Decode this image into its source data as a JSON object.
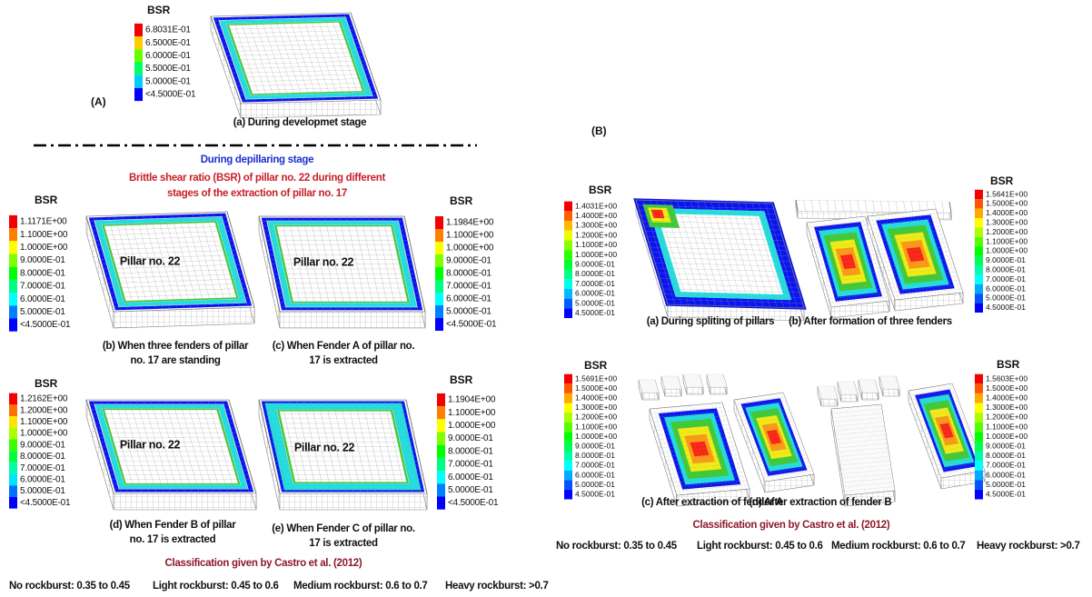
{
  "left": {
    "label": "(A)",
    "stage_heading": "During depillaring stage",
    "subtitle": [
      "Brittle shear ratio (BSR) of pillar no. 22 during different",
      "stages of the extraction of pillar no. 17"
    ],
    "panels": [
      {
        "legend": {
          "title": "BSR",
          "labels": [
            "6.8031E-01",
            "6.5000E-01",
            "6.0000E-01",
            "5.5000E-01",
            "5.0000E-01",
            "<4.5000E-01"
          ]
        },
        "caption": [
          "(a) During developmet stage"
        ]
      },
      {
        "legend": {
          "title": "BSR",
          "labels": [
            "1.1171E+00",
            "1.1000E+00",
            "1.0000E+00",
            "9.0000E-01",
            "8.0000E-01",
            "7.0000E-01",
            "6.0000E-01",
            "5.0000E-01",
            "<4.5000E-01"
          ]
        },
        "pillar_label": "Pillar no. 22",
        "caption": [
          "(b) When three fenders of pillar",
          "no. 17 are standing"
        ]
      },
      {
        "legend": {
          "title": "BSR",
          "labels": [
            "1.1984E+00",
            "1.1000E+00",
            "1.0000E+00",
            "9.0000E-01",
            "8.0000E-01",
            "7.0000E-01",
            "6.0000E-01",
            "5.0000E-01",
            "<4.5000E-01"
          ]
        },
        "pillar_label": "Pillar no. 22",
        "caption": [
          "(c) When Fender A of pillar no.",
          "17 is extracted"
        ]
      },
      {
        "legend": {
          "title": "BSR",
          "labels": [
            "1.2162E+00",
            "1.2000E+00",
            "1.1000E+00",
            "1.0000E+00",
            "9.0000E-01",
            "8.0000E-01",
            "7.0000E-01",
            "6.0000E-01",
            "5.0000E-01",
            "<4.5000E-01"
          ]
        },
        "pillar_label": "Pillar no. 22",
        "caption": [
          "(d) When Fender B of pillar",
          "no. 17 is extracted"
        ]
      },
      {
        "legend": {
          "title": "BSR",
          "labels": [
            "1.1904E+00",
            "1.1000E+00",
            "1.0000E+00",
            "9.0000E-01",
            "8.0000E-01",
            "7.0000E-01",
            "6.0000E-01",
            "5.0000E-01",
            "<4.5000E-01"
          ]
        },
        "pillar_label": "Pillar no. 22",
        "caption": [
          "(e) When Fender C of pillar no.",
          "17 is extracted"
        ]
      }
    ],
    "classification_title": "Classification given by Castro et al. (2012)",
    "classification": [
      "No rockburst: 0.35 to 0.45",
      "Light rockburst: 0.45 to 0.6",
      "Medium rockburst: 0.6 to 0.7",
      "Heavy rockburst: >0.7"
    ]
  },
  "right": {
    "label": "(B)",
    "panels": [
      {
        "legend": {
          "title": "BSR",
          "labels": [
            "1.4031E+00",
            "1.4000E+00",
            "1.3000E+00",
            "1.2000E+00",
            "1.1000E+00",
            "1.0000E+00",
            "9.0000E-01",
            "8.0000E-01",
            "7.0000E-01",
            "6.0000E-01",
            "5.0000E-01",
            "4.5000E-01"
          ]
        },
        "caption": [
          "(a) During spliting of pillars"
        ]
      },
      {
        "legend": {
          "title": "BSR",
          "labels": [
            "1.5641E+00",
            "1.5000E+00",
            "1.4000E+00",
            "1.3000E+00",
            "1.2000E+00",
            "1.1000E+00",
            "1.0000E+00",
            "9.0000E-01",
            "8.0000E-01",
            "7.0000E-01",
            "6.0000E-01",
            "5.0000E-01",
            "4.5000E-01"
          ]
        },
        "caption": [
          "(b) After formation of three fenders"
        ]
      },
      {
        "legend": {
          "title": "BSR",
          "labels": [
            "1.5691E+00",
            "1.5000E+00",
            "1.4000E+00",
            "1.3000E+00",
            "1.2000E+00",
            "1.1000E+00",
            "1.0000E+00",
            "9.0000E-01",
            "8.0000E-01",
            "7.0000E-01",
            "6.0000E-01",
            "5.0000E-01",
            "4.5000E-01"
          ]
        },
        "caption": [
          "(c) After extraction of fender A"
        ]
      },
      {
        "legend": {
          "title": "BSR",
          "labels": [
            "1.5603E+00",
            "1.5000E+00",
            "1.4000E+00",
            "1.3000E+00",
            "1.2000E+00",
            "1.1000E+00",
            "1.0000E+00",
            "9.0000E-01",
            "8.0000E-01",
            "7.0000E-01",
            "6.0000E-01",
            "5.0000E-01",
            "4.5000E-01"
          ]
        },
        "caption": [
          "(d) After extraction of fender B"
        ]
      }
    ],
    "classification_title": "Classification given by Castro et al. (2012)",
    "classification": [
      "No rockburst: 0.35 to 0.45",
      "Light rockburst: 0.45 to 0.6",
      "Medium rockburst: 0.6 to 0.7",
      "Heavy rockburst: >0.7"
    ]
  }
}
